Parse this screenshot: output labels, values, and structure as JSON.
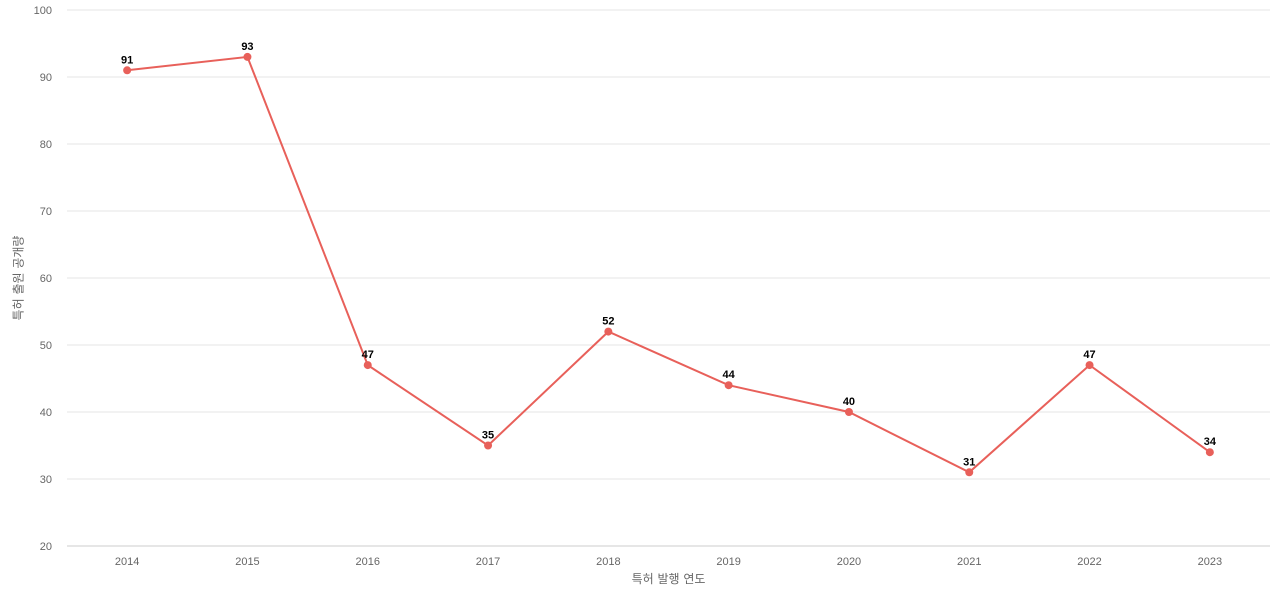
{
  "chart_data": {
    "type": "line",
    "title": "",
    "xlabel": "특허 발행 연도",
    "ylabel": "특허 출원 공개량",
    "categories": [
      "2014",
      "2015",
      "2016",
      "2017",
      "2018",
      "2019",
      "2020",
      "2021",
      "2022",
      "2023"
    ],
    "series": [
      {
        "values": [
          91,
          93,
          47,
          35,
          52,
          44,
          40,
          31,
          47,
          34
        ],
        "color": "#e8605a"
      }
    ],
    "ylim": [
      20,
      100
    ],
    "yticks": [
      20,
      30,
      40,
      50,
      60,
      70,
      80,
      90,
      100
    ],
    "grid": true,
    "legend": "none"
  }
}
